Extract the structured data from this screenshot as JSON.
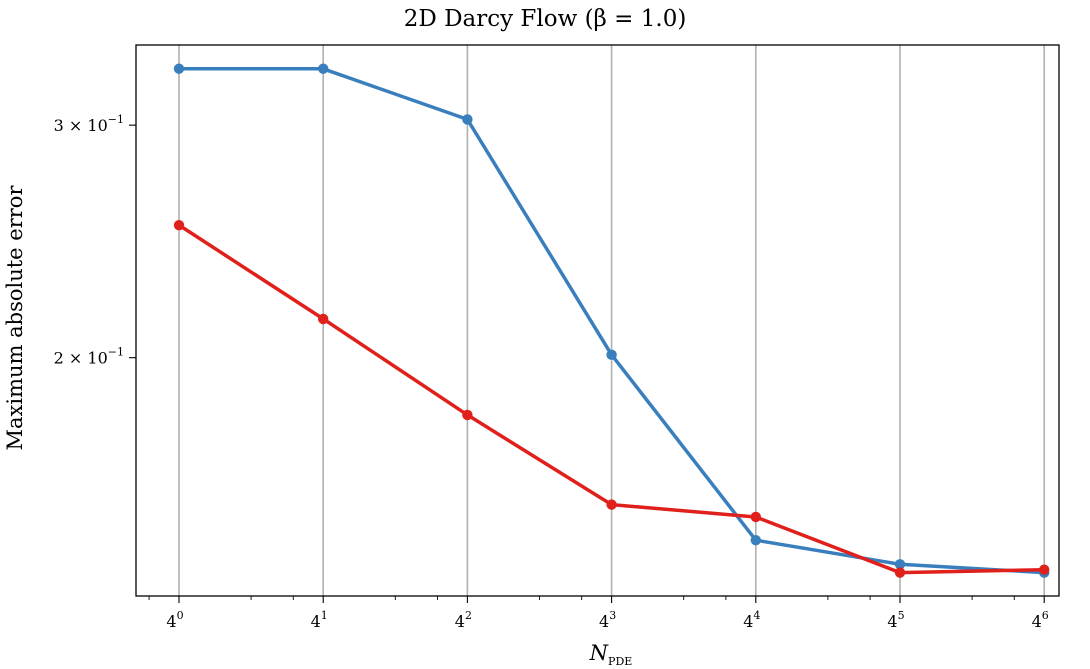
{
  "chart_data": {
    "type": "line",
    "title": "2D Darcy Flow (β = 1.0)",
    "xlabel": "N",
    "xlabel_sub": "PDE",
    "ylabel": "Maximum absolute error",
    "x_scale": "log",
    "x_base": 4,
    "x": [
      1,
      4,
      16,
      64,
      256,
      1024,
      4096
    ],
    "x_ticks": [
      {
        "base": "4",
        "exp": "0"
      },
      {
        "base": "4",
        "exp": "1"
      },
      {
        "base": "4",
        "exp": "2"
      },
      {
        "base": "4",
        "exp": "3"
      },
      {
        "base": "4",
        "exp": "4"
      },
      {
        "base": "4",
        "exp": "5"
      },
      {
        "base": "4",
        "exp": "6"
      }
    ],
    "y_scale": "log",
    "ylim": [
      0.132,
      0.345
    ],
    "y_ticks": [
      {
        "value": 0.2,
        "label": "2 × 10",
        "exp": "−1"
      },
      {
        "value": 0.3,
        "label": "3 × 10",
        "exp": "−1"
      }
    ],
    "grid": "vertical",
    "legend": "none",
    "series": [
      {
        "color": "#3a7fbd",
        "values": [
          0.331,
          0.331,
          0.303,
          0.201,
          0.1455,
          0.1395,
          0.1375
        ]
      },
      {
        "color": "#e0201b",
        "values": [
          0.252,
          0.214,
          0.181,
          0.1548,
          0.1515,
          0.1375,
          0.1382
        ]
      }
    ]
  }
}
